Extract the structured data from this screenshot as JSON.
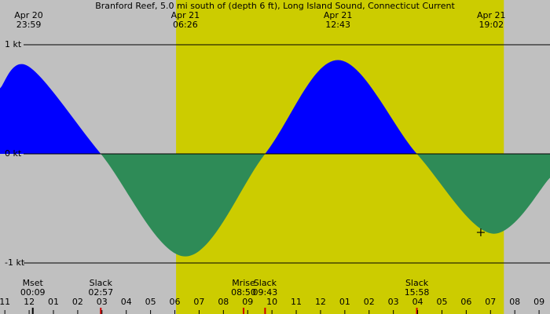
{
  "chart_data": {
    "type": "area",
    "title": "Branford Reef, 5.0 mi south of (depth 6 ft), Long Island Sound, Connecticut Current",
    "x": [
      -1.2,
      -0.017,
      2.95,
      6.433,
      9.717,
      12.717,
      15.967,
      19.033,
      21.45
    ],
    "values": [
      0.6,
      0.8,
      0,
      -0.94,
      0,
      0.86,
      0,
      -0.73,
      -0.22
    ],
    "colors": {
      "flood": "#0000ff",
      "ebb": "#2e8b57",
      "night": "#c0c0c0",
      "day": "#cccc00"
    },
    "daylight": [
      6.05,
      19.55
    ],
    "xlim": [
      -1.2,
      21.45
    ],
    "ylim": [
      -1.468,
      1.41
    ],
    "yticks": [
      {
        "value": 1,
        "label": "1 kt"
      },
      {
        "value": 0,
        "label": "0 kt"
      },
      {
        "value": -1,
        "label": "-1 kt"
      }
    ],
    "xticks": [
      {
        "value": -1,
        "label": "11"
      },
      {
        "value": 0,
        "label": "12"
      },
      {
        "value": 1,
        "label": "01"
      },
      {
        "value": 2,
        "label": "02"
      },
      {
        "value": 3,
        "label": "03"
      },
      {
        "value": 4,
        "label": "04"
      },
      {
        "value": 5,
        "label": "05"
      },
      {
        "value": 6,
        "label": "06"
      },
      {
        "value": 7,
        "label": "07"
      },
      {
        "value": 8,
        "label": "08"
      },
      {
        "value": 9,
        "label": "09"
      },
      {
        "value": 10,
        "label": "10"
      },
      {
        "value": 11,
        "label": "11"
      },
      {
        "value": 12,
        "label": "12"
      },
      {
        "value": 13,
        "label": "01"
      },
      {
        "value": 14,
        "label": "02"
      },
      {
        "value": 15,
        "label": "03"
      },
      {
        "value": 16,
        "label": "04"
      },
      {
        "value": 17,
        "label": "05"
      },
      {
        "value": 18,
        "label": "06"
      },
      {
        "value": 19,
        "label": "07"
      },
      {
        "value": 20,
        "label": "08"
      },
      {
        "value": 21,
        "label": "09"
      }
    ],
    "peak_labels": [
      {
        "x": -0.017,
        "date": "Apr 20",
        "time": "23:59"
      },
      {
        "x": 6.433,
        "date": "Apr 21",
        "time": "06:26"
      },
      {
        "x": 12.717,
        "date": "Apr 21",
        "time": "12:43"
      },
      {
        "x": 19.033,
        "date": "Apr 21",
        "time": "19:02"
      }
    ],
    "events": [
      {
        "x": 0.15,
        "label": "Mset",
        "time": "00:09",
        "color": "#000000"
      },
      {
        "x": 2.95,
        "label": "Slack",
        "time": "02:57",
        "color": "#cc0000"
      },
      {
        "x": 8.83,
        "label": "Mrise",
        "time": "08:50",
        "color": "#cc0000"
      },
      {
        "x": 9.717,
        "label": "Slack",
        "time": "09:43",
        "color": "#cc0000"
      },
      {
        "x": 15.967,
        "label": "Slack",
        "time": "15:58",
        "color": "#cc0000"
      }
    ],
    "marker": {
      "x": 18.6,
      "y": -0.72
    }
  }
}
